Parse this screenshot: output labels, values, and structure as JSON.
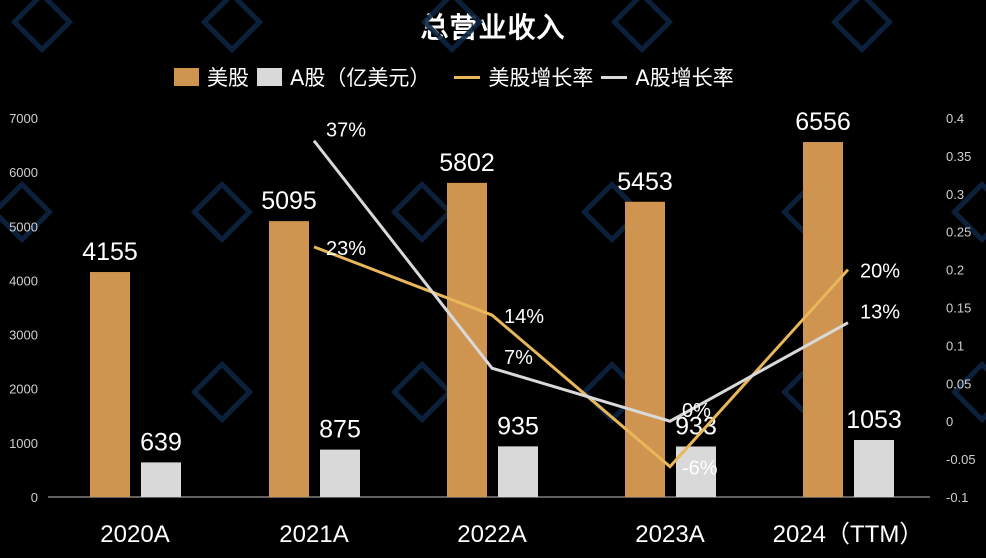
{
  "title": "总营业收入",
  "legend": [
    {
      "label": "美股",
      "type": "bar",
      "color": "#CF9550"
    },
    {
      "label": "A股（亿美元）",
      "type": "bar",
      "color": "#D9D9D9"
    },
    {
      "label": "美股增长率",
      "type": "line",
      "color": "#E8B75A"
    },
    {
      "label": "A股增长率",
      "type": "line",
      "color": "#D9D9D9"
    }
  ],
  "colors": {
    "background": "#000000",
    "us_bar": "#CF9550",
    "a_bar": "#D9D9D9",
    "us_line": "#E8B75A",
    "a_line": "#D9D9D9",
    "watermark": "#0C2340"
  },
  "chart_data": {
    "type": "bar",
    "title": "总营业收入",
    "xlabel": "",
    "ylabel": "亿美元",
    "categories": [
      "2020A",
      "2021A",
      "2022A",
      "2023A",
      "2024（TTM）"
    ],
    "series": [
      {
        "name": "美股",
        "type": "bar",
        "axis": "left",
        "values": [
          4155,
          5095,
          5802,
          5453,
          6556
        ]
      },
      {
        "name": "A股（亿美元）",
        "type": "bar",
        "axis": "left",
        "values": [
          639,
          875,
          935,
          933,
          1053
        ]
      },
      {
        "name": "美股增长率",
        "type": "line",
        "axis": "right",
        "values": [
          null,
          0.23,
          0.14,
          -0.06,
          0.2
        ],
        "labels": [
          "",
          "23%",
          "14%",
          "-6%",
          "20%"
        ]
      },
      {
        "name": "A股增长率",
        "type": "line",
        "axis": "right",
        "values": [
          null,
          0.37,
          0.07,
          0.0,
          0.13
        ],
        "labels": [
          "",
          "37%",
          "7%",
          "0%",
          "13%"
        ]
      }
    ],
    "ylim": [
      0,
      7000
    ],
    "y_ticks": [
      "0",
      "1000",
      "2000",
      "3000",
      "4000",
      "5000",
      "6000",
      "7000"
    ],
    "y2lim": [
      -0.1,
      0.4
    ],
    "y2_ticks": [
      "-0.1",
      "-0.05",
      "0",
      "0.05",
      "0.1",
      "0.15",
      "0.2",
      "0.25",
      "0.3",
      "0.35",
      "0.4"
    ],
    "grid": false,
    "legend_position": "top"
  }
}
